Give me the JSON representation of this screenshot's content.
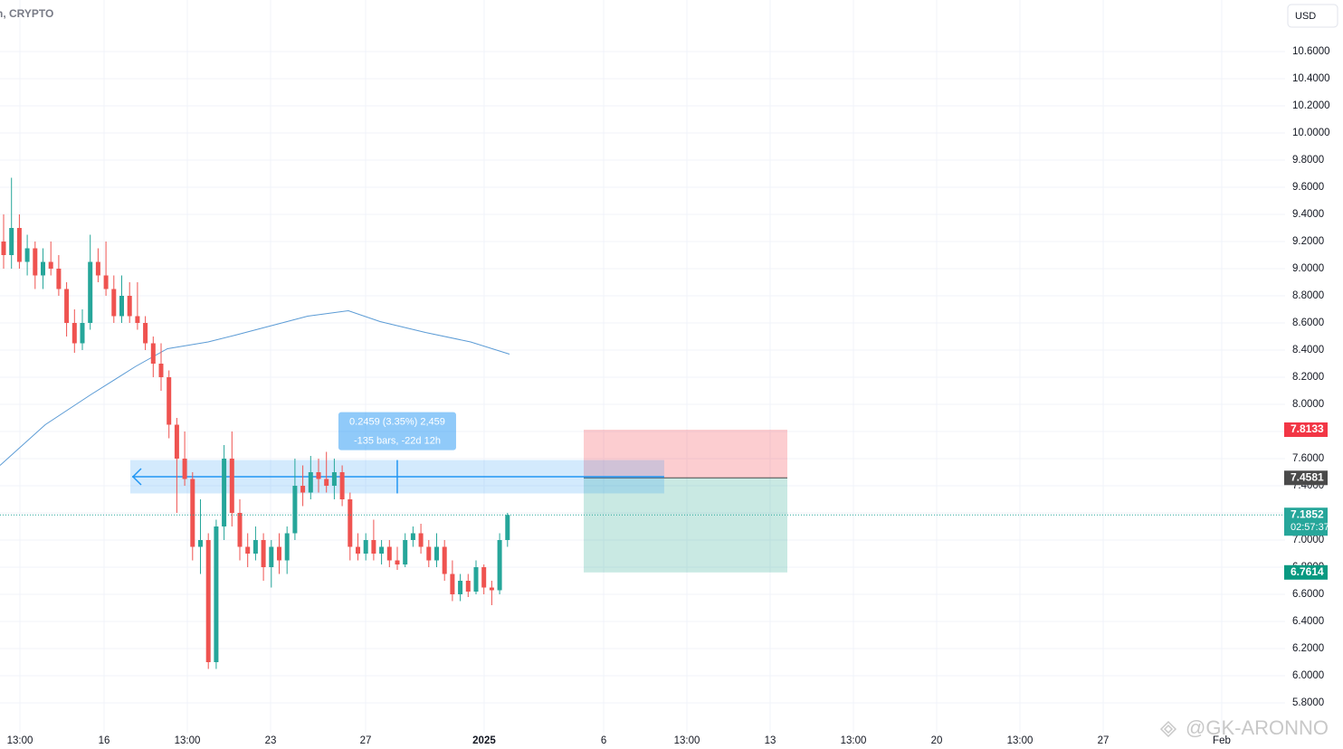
{
  "chart_data": {
    "type": "candlestick",
    "header": "n, CRYPTO",
    "currency": "USD",
    "watermark": "@GK-ARONNO",
    "up_color": "#26a69a",
    "down_color": "#ef5350",
    "grid": true,
    "x": [
      0,
      1,
      2,
      3,
      4,
      5,
      6,
      7,
      8,
      9,
      10,
      11,
      12,
      13,
      14,
      15,
      16,
      17,
      18,
      19,
      20,
      21,
      22,
      23,
      24,
      25,
      26,
      27,
      28,
      29,
      30,
      31,
      32,
      33,
      34,
      35,
      36,
      37,
      38,
      39,
      40,
      41,
      42,
      43,
      44,
      45,
      46,
      47,
      48,
      49,
      50,
      51,
      52,
      53,
      54,
      55,
      56,
      57,
      58,
      59,
      60,
      61,
      62,
      63,
      64
    ],
    "open": [
      9.2,
      9.1,
      9.3,
      9.05,
      9.15,
      8.95,
      9.05,
      9.0,
      8.85,
      8.6,
      8.45,
      8.6,
      9.05,
      8.95,
      8.85,
      8.65,
      8.8,
      8.65,
      8.6,
      8.45,
      8.3,
      8.2,
      7.85,
      7.6,
      7.45,
      6.95,
      7.0,
      6.1,
      7.1,
      7.6,
      7.2,
      6.95,
      6.9,
      7.0,
      6.8,
      6.95,
      6.85,
      7.05,
      7.4,
      7.35,
      7.5,
      7.45,
      7.4,
      7.5,
      7.3,
      6.95,
      6.9,
      7.0,
      6.9,
      6.95,
      6.85,
      6.82,
      7.0,
      7.05,
      6.95,
      6.85,
      6.95,
      6.75,
      6.6,
      6.7,
      6.62,
      6.8,
      6.65,
      6.63,
      7.0
    ],
    "high": [
      9.4,
      9.67,
      9.4,
      9.25,
      9.2,
      9.15,
      9.2,
      9.1,
      8.9,
      8.7,
      8.7,
      9.25,
      9.15,
      9.2,
      8.95,
      8.95,
      8.9,
      8.9,
      8.65,
      8.5,
      8.45,
      8.25,
      7.9,
      7.8,
      7.5,
      7.3,
      7.05,
      7.15,
      7.7,
      7.8,
      7.3,
      7.05,
      7.1,
      7.05,
      7.0,
      7.05,
      7.1,
      7.6,
      7.55,
      7.62,
      7.6,
      7.65,
      7.6,
      7.55,
      7.35,
      7.05,
      7.05,
      7.15,
      7.0,
      7.0,
      6.95,
      7.05,
      7.1,
      7.12,
      7.0,
      7.05,
      7.0,
      6.85,
      6.75,
      6.75,
      6.85,
      6.82,
      6.7,
      7.05,
      7.2
    ],
    "low": [
      9.0,
      9.0,
      9.0,
      8.95,
      8.85,
      8.85,
      8.95,
      8.8,
      8.5,
      8.38,
      8.4,
      8.55,
      8.9,
      8.8,
      8.6,
      8.6,
      8.6,
      8.55,
      8.4,
      8.2,
      8.1,
      7.75,
      7.2,
      7.4,
      6.85,
      6.75,
      6.05,
      6.05,
      7.0,
      7.1,
      6.85,
      6.8,
      6.85,
      6.7,
      6.65,
      6.75,
      6.75,
      7.0,
      7.25,
      7.3,
      7.35,
      7.35,
      7.3,
      7.25,
      6.85,
      6.85,
      6.85,
      6.85,
      6.82,
      6.8,
      6.78,
      6.8,
      6.95,
      6.9,
      6.8,
      6.8,
      6.7,
      6.55,
      6.55,
      6.58,
      6.6,
      6.6,
      6.52,
      6.6,
      6.95
    ],
    "close": [
      9.1,
      9.3,
      9.05,
      9.15,
      8.95,
      9.05,
      9.0,
      8.85,
      8.6,
      8.45,
      8.6,
      9.05,
      8.95,
      8.85,
      8.65,
      8.8,
      8.65,
      8.6,
      8.45,
      8.3,
      8.2,
      7.85,
      7.6,
      7.45,
      6.95,
      7.0,
      6.1,
      7.1,
      7.6,
      7.2,
      6.95,
      6.9,
      7.0,
      6.8,
      6.95,
      6.85,
      7.05,
      7.4,
      7.35,
      7.5,
      7.45,
      7.4,
      7.5,
      7.3,
      6.95,
      6.9,
      7.0,
      6.9,
      6.95,
      6.85,
      6.82,
      7.0,
      7.05,
      6.95,
      6.85,
      6.95,
      6.75,
      6.6,
      6.7,
      6.62,
      6.8,
      6.65,
      6.63,
      7.0,
      7.1852
    ],
    "ma": {
      "color": "#5b9bd5",
      "x": [
        -0.46,
        5.29,
        11.03,
        16.78,
        20.8,
        25.98,
        29.43,
        34.02,
        38.62,
        43.79,
        47.82,
        53.56,
        59.31,
        64.25
      ],
      "values": [
        7.55,
        7.85,
        8.07,
        8.28,
        8.41,
        8.46,
        8.51,
        8.58,
        8.65,
        8.69,
        8.61,
        8.53,
        8.46,
        8.37
      ]
    },
    "xlim": [
      -0.46,
      162.76
    ],
    "ylim": [
      5.58,
      10.98
    ],
    "xticks": [
      {
        "value": 2.07,
        "label": "13:00"
      },
      {
        "value": 12.76,
        "label": "16"
      },
      {
        "value": 23.33,
        "label": "13:00"
      },
      {
        "value": 33.91,
        "label": "23"
      },
      {
        "value": 45.98,
        "label": "27"
      },
      {
        "value": 61.03,
        "label": "2025"
      },
      {
        "value": 76.21,
        "label": "6"
      },
      {
        "value": 86.78,
        "label": "13:00"
      },
      {
        "value": 97.36,
        "label": "13"
      },
      {
        "value": 107.93,
        "label": "13:00"
      },
      {
        "value": 118.51,
        "label": "20"
      },
      {
        "value": 129.08,
        "label": "13:00"
      },
      {
        "value": 139.66,
        "label": "27"
      },
      {
        "value": 154.71,
        "label": "Feb"
      }
    ],
    "yticks": [
      {
        "value": 10.6,
        "label": "10.6000"
      },
      {
        "value": 10.4,
        "label": "10.4000"
      },
      {
        "value": 10.2,
        "label": "10.2000"
      },
      {
        "value": 10.0,
        "label": "10.0000"
      },
      {
        "value": 9.8,
        "label": "9.8000"
      },
      {
        "value": 9.6,
        "label": "9.6000"
      },
      {
        "value": 9.4,
        "label": "9.4000"
      },
      {
        "value": 9.2,
        "label": "9.2000"
      },
      {
        "value": 9.0,
        "label": "9.0000"
      },
      {
        "value": 8.8,
        "label": "8.8000"
      },
      {
        "value": 8.6,
        "label": "8.6000"
      },
      {
        "value": 8.4,
        "label": "8.4000"
      },
      {
        "value": 8.2,
        "label": "8.2000"
      },
      {
        "value": 8.0,
        "label": "8.0000"
      },
      {
        "value": 7.8,
        "label": "7.8000"
      },
      {
        "value": 7.6,
        "label": "7.6000"
      },
      {
        "value": 7.4,
        "label": "7.4000"
      },
      {
        "value": 7.2,
        "label": "7.2000"
      },
      {
        "value": 7.0,
        "label": "7.0000"
      },
      {
        "value": 6.8,
        "label": "6.8000"
      },
      {
        "value": 6.6,
        "label": "6.6000"
      },
      {
        "value": 6.4,
        "label": "6.4000"
      },
      {
        "value": 6.2,
        "label": "6.2000"
      },
      {
        "value": 6.0,
        "label": "6.0000"
      },
      {
        "value": 5.8,
        "label": "5.8000"
      }
    ],
    "last_price": {
      "value": 7.1852,
      "countdown": "02:57:37",
      "color": "#26a69a"
    },
    "stop": {
      "value": 7.8133,
      "color": "#f23645"
    },
    "entry": {
      "value": 7.4581,
      "color": "#4a4a4a"
    },
    "target": {
      "value": 6.7614,
      "color": "#089981"
    },
    "position": {
      "x": [
        73.68,
        99.54
      ]
    },
    "measure": {
      "x": [
        16.09,
        83.9
      ],
      "y": [
        7.3436,
        7.5895
      ],
      "label_lines": [
        "0.2459 (3.35%) 2,459",
        "-135 bars, -22d 12h"
      ]
    }
  }
}
